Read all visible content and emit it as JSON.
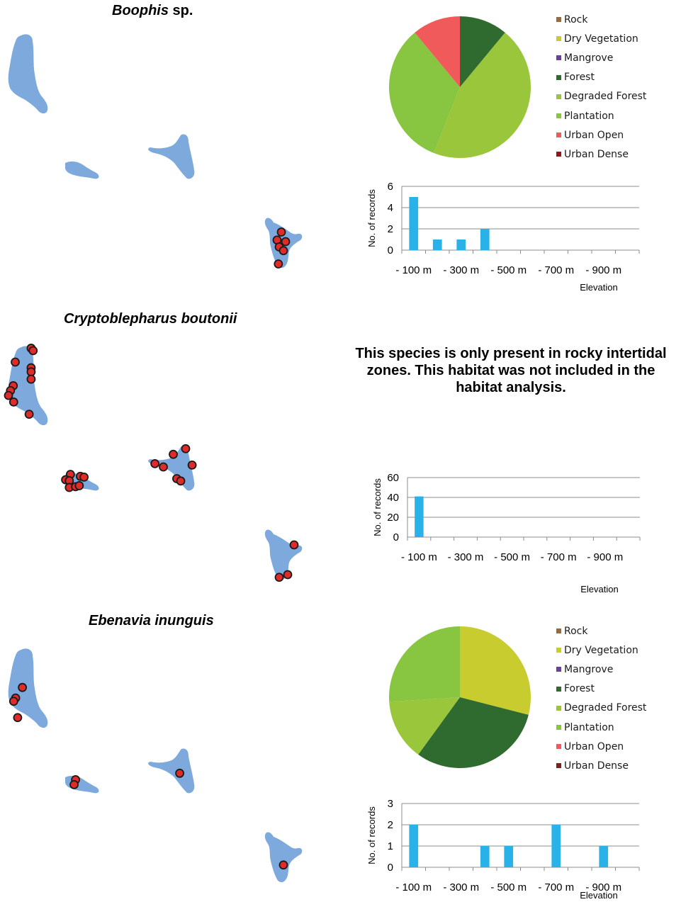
{
  "colors": {
    "island_fill": "#7da9dd",
    "record_fill": "#e02b2b",
    "record_stroke": "#1a1a1a",
    "bar_fill": "#29b2e8",
    "gridline": "#8c8c8c"
  },
  "habitats": [
    {
      "label": "Rock",
      "color": "#9b6a3a"
    },
    {
      "label": "Dry Vegetation",
      "color": "#c9cc2f"
    },
    {
      "label": "Mangrove",
      "color": "#6b3fa0"
    },
    {
      "label": "Forest",
      "color": "#2f6a2f"
    },
    {
      "label": "Degraded Forest",
      "color": "#99c63b"
    },
    {
      "label": "Plantation",
      "color": "#88c540"
    },
    {
      "label": "Urban Open",
      "color": "#f05a5a"
    },
    {
      "label": "Urban Dense",
      "color": "#8b1a1a"
    }
  ],
  "panels": [
    {
      "title_italic": "Boophis",
      "title_rest": " sp.",
      "note": "",
      "records": {
        "grande_comore": [],
        "moheli": [],
        "anjouan": [],
        "mayotte": [
          [
            0.45,
            0.3
          ],
          [
            0.35,
            0.45
          ],
          [
            0.55,
            0.48
          ],
          [
            0.4,
            0.58
          ],
          [
            0.5,
            0.65
          ],
          [
            0.38,
            0.9
          ]
        ]
      }
    },
    {
      "title_italic": "Cryptoblepharus boutonii",
      "title_rest": "",
      "note": "This species is only present in rocky intertidal zones. This habitat was not included in the habitat analysis.",
      "records": {
        "grande_comore": [
          [
            0.57,
            0.03
          ],
          [
            0.62,
            0.06
          ],
          [
            0.17,
            0.2
          ],
          [
            0.57,
            0.27
          ],
          [
            0.57,
            0.32
          ],
          [
            0.57,
            0.41
          ],
          [
            0.12,
            0.49
          ],
          [
            0.05,
            0.55
          ],
          [
            0.0,
            0.61
          ],
          [
            0.13,
            0.69
          ],
          [
            0.52,
            0.84
          ]
        ],
        "moheli": [
          [
            0.18,
            0.16
          ],
          [
            0.45,
            0.26
          ],
          [
            0.55,
            0.3
          ],
          [
            0.05,
            0.43
          ],
          [
            0.15,
            0.48
          ],
          [
            0.15,
            0.82
          ],
          [
            0.32,
            0.78
          ],
          [
            0.42,
            0.73
          ]
        ],
        "anjouan": [
          [
            0.8,
            0.08
          ],
          [
            0.55,
            0.2
          ],
          [
            0.18,
            0.4
          ],
          [
            0.35,
            0.47
          ],
          [
            0.93,
            0.43
          ],
          [
            0.62,
            0.72
          ],
          [
            0.7,
            0.77
          ]
        ],
        "mayotte": [
          [
            0.75,
            0.32
          ],
          [
            0.6,
            0.88
          ],
          [
            0.4,
            0.93
          ]
        ]
      }
    },
    {
      "title_italic": "Ebenavia inunguis",
      "title_rest": "",
      "note": "",
      "records": {
        "grande_comore": [
          [
            0.35,
            0.48
          ],
          [
            0.18,
            0.61
          ],
          [
            0.13,
            0.65
          ],
          [
            0.23,
            0.85
          ]
        ],
        "moheli": [
          [
            0.32,
            0.3
          ],
          [
            0.28,
            0.55
          ]
        ],
        "anjouan": [
          [
            0.68,
            0.55
          ]
        ],
        "mayotte": [
          [
            0.5,
            0.65
          ]
        ]
      }
    }
  ],
  "chart_data": [
    {
      "type": "pie",
      "panel": "Boophis sp.",
      "labels": [
        "Rock",
        "Dry Vegetation",
        "Mangrove",
        "Forest",
        "Degraded Forest",
        "Plantation",
        "Urban Open",
        "Urban Dense"
      ],
      "values": [
        0,
        0,
        0,
        11,
        45,
        33,
        11,
        0
      ],
      "start_angle": 90,
      "direction": "clockwise"
    },
    {
      "type": "bar",
      "panel": "Boophis sp.",
      "ylabel": "No. of records",
      "xlabel": "Elevation",
      "ylim": [
        0,
        6
      ],
      "yticks": [
        0,
        2,
        4,
        6
      ],
      "categories": [
        "- 100 m",
        "- 200 m",
        "- 300 m",
        "- 400 m",
        "- 500 m",
        "- 600 m",
        "- 700 m",
        "- 800 m",
        "- 900 m",
        "- 1000 m"
      ],
      "tick_labels": [
        "- 100 m",
        "- 300 m",
        "- 500 m",
        "- 700 m",
        "- 900 m"
      ],
      "values": [
        5,
        1,
        1,
        2,
        0,
        0,
        0,
        0,
        0,
        0
      ],
      "grid": true
    },
    {
      "type": "bar",
      "panel": "Cryptoblepharus boutonii",
      "ylabel": "No. of records",
      "xlabel": "Elevation",
      "ylim": [
        0,
        60
      ],
      "yticks": [
        0,
        20,
        40,
        60
      ],
      "categories": [
        "- 100 m",
        "- 200 m",
        "- 300 m",
        "- 400 m",
        "- 500 m",
        "- 600 m",
        "- 700 m",
        "- 800 m",
        "- 900 m",
        "- 1000 m"
      ],
      "tick_labels": [
        "- 100 m",
        "- 300 m",
        "- 500 m",
        "- 700 m",
        "- 900 m"
      ],
      "values": [
        41,
        0,
        0,
        0,
        0,
        0,
        0,
        0,
        0,
        0
      ],
      "grid": true
    },
    {
      "type": "pie",
      "panel": "Ebenavia inunguis",
      "labels": [
        "Rock",
        "Dry Vegetation",
        "Mangrove",
        "Forest",
        "Degraded Forest",
        "Plantation",
        "Urban Open",
        "Urban Dense"
      ],
      "values": [
        0,
        29,
        0,
        31,
        14,
        26,
        0,
        0
      ],
      "start_angle": 90,
      "direction": "clockwise"
    },
    {
      "type": "bar",
      "panel": "Ebenavia inunguis",
      "ylabel": "No. of records",
      "xlabel": "Elevation",
      "ylim": [
        0,
        3
      ],
      "yticks": [
        0,
        1,
        2,
        3
      ],
      "categories": [
        "- 100 m",
        "- 200 m",
        "- 300 m",
        "- 400 m",
        "- 500 m",
        "- 600 m",
        "- 700 m",
        "- 800 m",
        "- 900 m",
        "- 1000 m"
      ],
      "tick_labels": [
        "- 100 m",
        "- 300 m",
        "- 500 m",
        "- 700 m",
        "- 900 m"
      ],
      "values": [
        2,
        0,
        0,
        1,
        1,
        0,
        2,
        0,
        1,
        0
      ],
      "grid": true
    }
  ]
}
